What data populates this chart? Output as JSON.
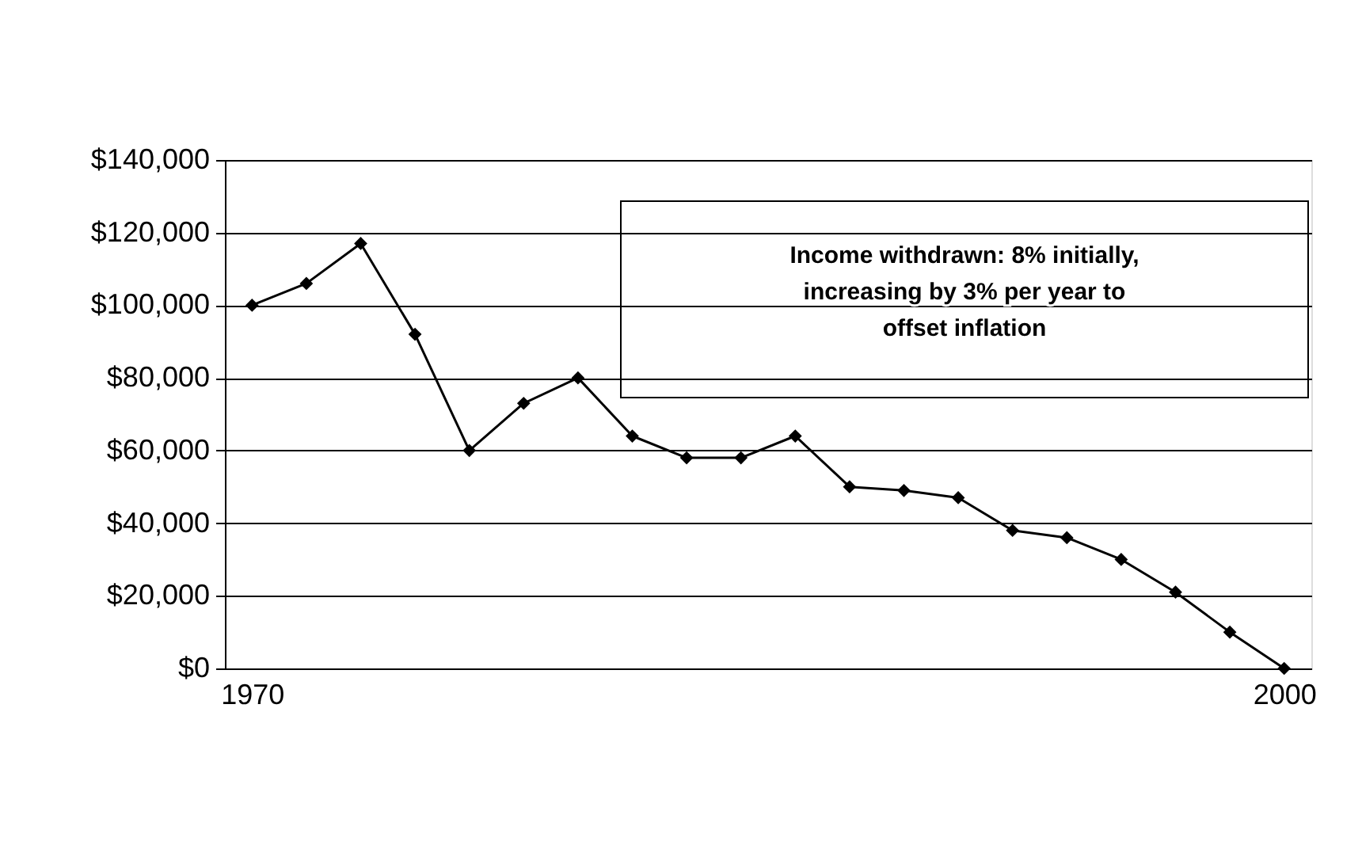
{
  "chart_data": {
    "type": "line",
    "categories": [
      "1970",
      null,
      null,
      null,
      null,
      null,
      null,
      null,
      null,
      null,
      null,
      null,
      null,
      null,
      null,
      null,
      null,
      null,
      null,
      "2000"
    ],
    "series": [
      {
        "color": "#000000",
        "values": [
          100000,
          106000,
          117000,
          92000,
          60000,
          73000,
          80000,
          64000,
          58000,
          58000,
          64000,
          50000,
          49000,
          47000,
          38000,
          36000,
          30000,
          21000,
          10000,
          0
        ]
      }
    ],
    "ylim": [
      0,
      140000
    ],
    "yticks": [
      {
        "value": 0,
        "label": "$0"
      },
      {
        "value": 20000,
        "label": "$20,000"
      },
      {
        "value": 40000,
        "label": "$40,000"
      },
      {
        "value": 60000,
        "label": "$60,000"
      },
      {
        "value": 80000,
        "label": "$80,000"
      },
      {
        "value": 100000,
        "label": "$100,000"
      },
      {
        "value": 120000,
        "label": "$120,000"
      },
      {
        "value": 140000,
        "label": "$140,000"
      }
    ],
    "grid": "y",
    "marker": "diamond",
    "line_style": "solid",
    "annotations": [
      "Income withdrawn: 8% initially, increasing by 3% per year to offset inflation"
    ]
  }
}
